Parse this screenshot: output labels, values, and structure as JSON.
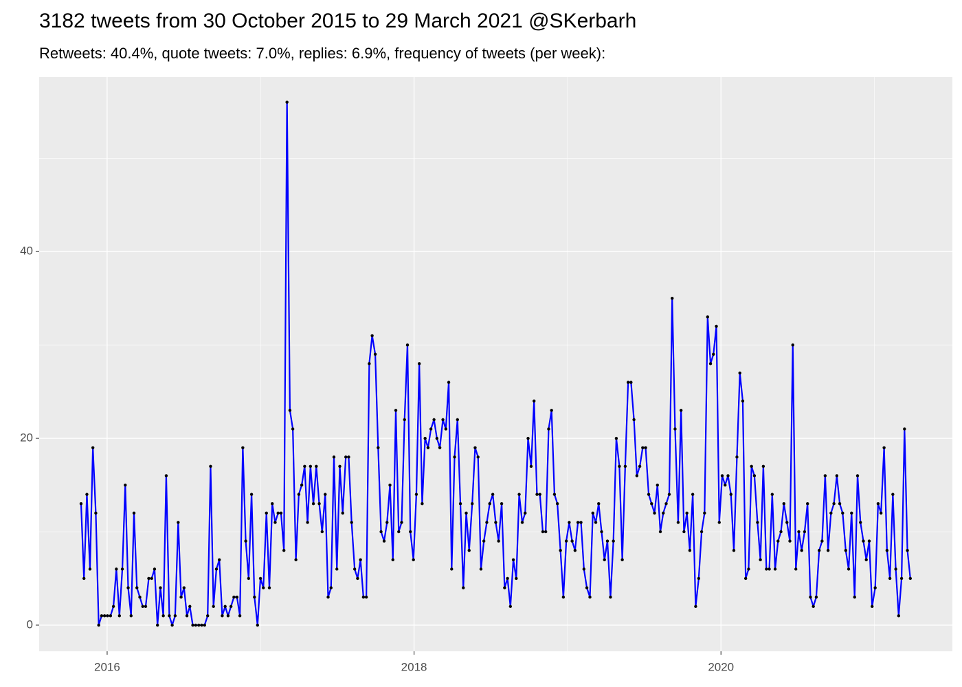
{
  "chart_data": {
    "type": "line",
    "title": "3182 tweets from 30 October 2015 to 29 March 2021 @SKerbarh",
    "subtitle": "Retweets: 40.4%, quote tweets: 7.0%, replies: 6.9%, frequency of tweets (per week):",
    "line_color": "#0000ff",
    "point_color": "#000000",
    "panel_color": "#ebebeb",
    "grid": true,
    "xlim": [
      2015.557,
      2021.508
    ],
    "ylim": [
      -2.8,
      58.7
    ],
    "xticks": [
      2016,
      2018,
      2020
    ],
    "yticks": [
      0,
      20,
      40
    ],
    "x_minor_ticks": [
      2017,
      2019,
      2021
    ],
    "y_minor_ticks": [
      10,
      30,
      50
    ],
    "x": [
      2015.83,
      2015.849,
      2015.868,
      2015.888,
      2015.907,
      2015.926,
      2015.945,
      2015.964,
      2015.983,
      2016.002,
      2016.022,
      2016.041,
      2016.06,
      2016.08,
      2016.099,
      2016.118,
      2016.137,
      2016.156,
      2016.175,
      2016.194,
      2016.213,
      2016.232,
      2016.251,
      2016.271,
      2016.29,
      2016.309,
      2016.328,
      2016.347,
      2016.366,
      2016.385,
      2016.405,
      2016.424,
      2016.443,
      2016.463,
      2016.482,
      2016.501,
      2016.52,
      2016.539,
      2016.558,
      2016.577,
      2016.597,
      2016.616,
      2016.635,
      2016.655,
      2016.674,
      2016.693,
      2016.712,
      2016.731,
      2016.75,
      2016.769,
      2016.788,
      2016.807,
      2016.826,
      2016.846,
      2016.865,
      2016.884,
      2016.903,
      2016.922,
      2016.941,
      2016.96,
      2016.98,
      2016.999,
      2017.018,
      2017.038,
      2017.057,
      2017.076,
      2017.095,
      2017.114,
      2017.133,
      2017.152,
      2017.172,
      2017.191,
      2017.21,
      2017.23,
      2017.249,
      2017.268,
      2017.287,
      2017.306,
      2017.325,
      2017.344,
      2017.363,
      2017.382,
      2017.401,
      2017.421,
      2017.44,
      2017.459,
      2017.478,
      2017.497,
      2017.516,
      2017.535,
      2017.555,
      2017.574,
      2017.593,
      2017.613,
      2017.632,
      2017.651,
      2017.67,
      2017.689,
      2017.708,
      2017.727,
      2017.747,
      2017.766,
      2017.785,
      2017.805,
      2017.824,
      2017.843,
      2017.862,
      2017.881,
      2017.9,
      2017.919,
      2017.938,
      2017.957,
      2017.976,
      2017.996,
      2018.015,
      2018.034,
      2018.053,
      2018.072,
      2018.091,
      2018.11,
      2018.13,
      2018.149,
      2018.168,
      2018.188,
      2018.207,
      2018.226,
      2018.245,
      2018.264,
      2018.283,
      2018.302,
      2018.321,
      2018.34,
      2018.359,
      2018.379,
      2018.398,
      2018.417,
      2018.436,
      2018.455,
      2018.474,
      2018.493,
      2018.513,
      2018.532,
      2018.551,
      2018.571,
      2018.59,
      2018.609,
      2018.628,
      2018.647,
      2018.666,
      2018.685,
      2018.705,
      2018.724,
      2018.743,
      2018.763,
      2018.782,
      2018.801,
      2018.82,
      2018.839,
      2018.858,
      2018.877,
      2018.896,
      2018.915,
      2018.934,
      2018.954,
      2018.973,
      2018.992,
      2019.011,
      2019.03,
      2019.049,
      2019.068,
      2019.088,
      2019.107,
      2019.126,
      2019.146,
      2019.165,
      2019.184,
      2019.203,
      2019.222,
      2019.241,
      2019.26,
      2019.28,
      2019.299,
      2019.318,
      2019.338,
      2019.357,
      2019.376,
      2019.395,
      2019.414,
      2019.433,
      2019.452,
      2019.471,
      2019.49,
      2019.509,
      2019.529,
      2019.548,
      2019.567,
      2019.586,
      2019.605,
      2019.624,
      2019.643,
      2019.663,
      2019.682,
      2019.701,
      2019.721,
      2019.74,
      2019.759,
      2019.778,
      2019.797,
      2019.816,
      2019.835,
      2019.855,
      2019.874,
      2019.893,
      2019.913,
      2019.932,
      2019.951,
      2019.97,
      2019.989,
      2020.008,
      2020.027,
      2020.046,
      2020.065,
      2020.084,
      2020.104,
      2020.123,
      2020.142,
      2020.161,
      2020.18,
      2020.199,
      2020.218,
      2020.238,
      2020.257,
      2020.276,
      2020.296,
      2020.315,
      2020.334,
      2020.353,
      2020.372,
      2020.391,
      2020.41,
      2020.43,
      2020.449,
      2020.468,
      2020.488,
      2020.507,
      2020.526,
      2020.545,
      2020.564,
      2020.583,
      2020.602,
      2020.621,
      2020.64,
      2020.659,
      2020.679,
      2020.698,
      2020.717,
      2020.736,
      2020.755,
      2020.774,
      2020.793,
      2020.813,
      2020.832,
      2020.851,
      2020.871,
      2020.89,
      2020.909,
      2020.928,
      2020.947,
      2020.966,
      2020.985,
      2021.005,
      2021.024,
      2021.043,
      2021.063,
      2021.082,
      2021.101,
      2021.12,
      2021.139,
      2021.158,
      2021.177,
      2021.196,
      2021.215,
      2021.234
    ],
    "values": [
      13,
      5,
      14,
      6,
      19,
      12,
      0,
      1,
      1,
      1,
      1,
      2,
      6,
      1,
      6,
      15,
      4,
      1,
      12,
      4,
      3,
      2,
      2,
      5,
      5,
      6,
      0,
      4,
      1,
      16,
      1,
      0,
      1,
      11,
      3,
      4,
      1,
      2,
      0,
      0,
      0,
      0,
      0,
      1,
      17,
      2,
      6,
      7,
      1,
      2,
      1,
      2,
      3,
      3,
      1,
      19,
      9,
      5,
      14,
      3,
      0,
      5,
      4,
      12,
      4,
      13,
      11,
      12,
      12,
      8,
      56,
      23,
      21,
      7,
      14,
      15,
      17,
      11,
      17,
      13,
      17,
      13,
      10,
      14,
      3,
      4,
      18,
      6,
      17,
      12,
      18,
      18,
      11,
      6,
      5,
      7,
      3,
      3,
      28,
      31,
      29,
      19,
      10,
      9,
      11,
      15,
      7,
      23,
      10,
      11,
      22,
      30,
      10,
      7,
      14,
      28,
      13,
      20,
      19,
      21,
      22,
      20,
      19,
      22,
      21,
      26,
      6,
      18,
      22,
      13,
      4,
      12,
      8,
      13,
      19,
      18,
      6,
      9,
      11,
      13,
      14,
      11,
      9,
      13,
      4,
      5,
      2,
      7,
      5,
      14,
      11,
      12,
      20,
      17,
      24,
      14,
      14,
      10,
      10,
      21,
      23,
      14,
      13,
      8,
      3,
      9,
      11,
      9,
      8,
      11,
      11,
      6,
      4,
      3,
      12,
      11,
      13,
      10,
      7,
      9,
      3,
      9,
      20,
      17,
      7,
      17,
      26,
      26,
      22,
      16,
      17,
      19,
      19,
      14,
      13,
      12,
      15,
      10,
      12,
      13,
      14,
      35,
      21,
      11,
      23,
      10,
      12,
      8,
      14,
      2,
      5,
      10,
      12,
      33,
      28,
      29,
      32,
      11,
      16,
      15,
      16,
      14,
      8,
      18,
      27,
      24,
      5,
      6,
      17,
      16,
      11,
      7,
      17,
      6,
      6,
      14,
      6,
      9,
      10,
      13,
      11,
      9,
      30,
      6,
      10,
      8,
      10,
      13,
      3,
      2,
      3,
      8,
      9,
      16,
      8,
      12,
      13,
      16,
      13,
      12,
      8,
      6,
      12,
      3,
      16,
      11,
      9,
      7,
      9,
      2,
      4,
      13,
      12,
      19,
      8,
      5,
      14,
      6,
      1,
      5,
      21,
      8,
      5
    ]
  }
}
